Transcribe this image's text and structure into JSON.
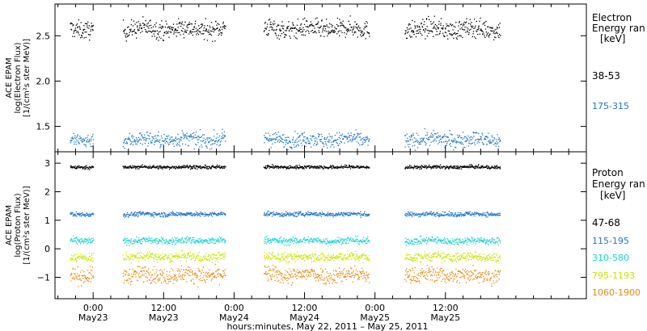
{
  "chart_data": [
    {
      "type": "scatter",
      "title": "",
      "ylabel_lines": [
        "ACE EPAM",
        "log(Electron Flux)",
        "[1/(cm²s ster MeV)]"
      ],
      "ylim": [
        1.22,
        2.85
      ],
      "yticks": [
        1.5,
        2.0,
        2.5
      ],
      "ytick_labels": [
        "1.5",
        "2.0",
        "2.5"
      ],
      "legend_title_lines": [
        "Electron",
        "Energy ran",
        "[keV]"
      ],
      "series": [
        {
          "name": "38-53",
          "color": "#000000",
          "mean": 2.58,
          "spread": 0.05
        },
        {
          "name": "175-315",
          "color": "#1f77c8",
          "mean": 1.36,
          "spread": 0.04
        }
      ]
    },
    {
      "type": "scatter",
      "title": "",
      "ylabel_lines": [
        "ACE EPAM",
        "log(Proton Flux)",
        "[1/(cm²s ster MeV)]"
      ],
      "ylim": [
        -1.75,
        3.4
      ],
      "yticks": [
        -1,
        0,
        1,
        2,
        3
      ],
      "ytick_labels": [
        "−1",
        "0",
        "1",
        "2",
        "3"
      ],
      "legend_title_lines": [
        "Proton",
        "Energy ran",
        "[keV]"
      ],
      "series": [
        {
          "name": "47-68",
          "color": "#000000",
          "mean": 2.88,
          "spread": 0.03
        },
        {
          "name": "115-195",
          "color": "#1f77c8",
          "mean": 1.23,
          "spread": 0.04
        },
        {
          "name": "310-580",
          "color": "#17d4d0",
          "mean": 0.3,
          "spread": 0.06
        },
        {
          "name": "795-1193",
          "color": "#c8e600",
          "mean": -0.27,
          "spread": 0.08
        },
        {
          "name": "1060-1900",
          "color": "#e8880a",
          "mean": -0.9,
          "spread": 0.14
        }
      ]
    }
  ],
  "x_axis": {
    "xlim_hours": [
      -6.5,
      84
    ],
    "title": "hours:minutes, May 22, 2011 – May 25, 2011",
    "ticks": [
      {
        "hour": 0,
        "time": "0:00",
        "date": "May23"
      },
      {
        "hour": 12,
        "time": "12:00",
        "date": "May23"
      },
      {
        "hour": 24,
        "time": "0:00",
        "date": "May24"
      },
      {
        "hour": 36,
        "time": "12:00",
        "date": "May24"
      },
      {
        "hour": 48,
        "time": "0:00",
        "date": "May25"
      },
      {
        "hour": 60,
        "time": "12:00",
        "date": "May25"
      }
    ],
    "data_segments_hours": [
      [
        -4,
        0
      ],
      [
        5,
        22.5
      ],
      [
        29,
        47
      ],
      [
        53,
        69.3
      ]
    ]
  }
}
